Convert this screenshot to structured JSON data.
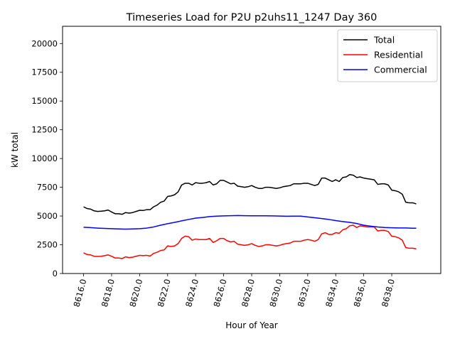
{
  "chart_data": {
    "type": "line",
    "title": "Timeseries Load for P2U p2uhs11_1247  Day 360",
    "xlabel": "Hour of Year",
    "ylabel": "kW total",
    "xlim": [
      8614.5,
      8641.5
    ],
    "ylim": [
      0,
      21500
    ],
    "x_ticks": [
      8616,
      8618,
      8620,
      8622,
      8624,
      8626,
      8628,
      8630,
      8632,
      8634,
      8636,
      8638
    ],
    "x_tick_labels": [
      "8616.0",
      "8618.0",
      "8620.0",
      "8622.0",
      "8624.0",
      "8626.0",
      "8628.0",
      "8630.0",
      "8632.0",
      "8634.0",
      "8636.0",
      "8638.0"
    ],
    "y_ticks": [
      0,
      2500,
      5000,
      7500,
      10000,
      12500,
      15000,
      17500,
      20000
    ],
    "y_tick_labels": [
      "0",
      "2500",
      "5000",
      "7500",
      "10000",
      "12500",
      "15000",
      "17500",
      "20000"
    ],
    "legend_position": "top-right",
    "grid": false,
    "series": [
      {
        "name": "Total",
        "color": "#000000",
        "x": [
          8616.0,
          8616.25,
          8616.5,
          8616.75,
          8617.0,
          8617.25,
          8617.5,
          8617.75,
          8618.0,
          8618.25,
          8618.5,
          8618.75,
          8619.0,
          8619.25,
          8619.5,
          8619.75,
          8620.0,
          8620.25,
          8620.5,
          8620.75,
          8621.0,
          8621.25,
          8621.5,
          8621.75,
          8622.0,
          8622.25,
          8622.5,
          8622.75,
          8623.0,
          8623.25,
          8623.5,
          8623.75,
          8624.0,
          8624.25,
          8624.5,
          8624.75,
          8625.0,
          8625.25,
          8625.5,
          8625.75,
          8626.0,
          8626.25,
          8626.5,
          8626.75,
          8627.0,
          8627.25,
          8627.5,
          8627.75,
          8628.0,
          8628.25,
          8628.5,
          8628.75,
          8629.0,
          8629.25,
          8629.5,
          8629.75,
          8630.0,
          8630.25,
          8630.5,
          8630.75,
          8631.0,
          8631.25,
          8631.5,
          8631.75,
          8632.0,
          8632.25,
          8632.5,
          8632.75,
          8633.0,
          8633.25,
          8633.5,
          8633.75,
          8634.0,
          8634.25,
          8634.5,
          8634.75,
          8635.0,
          8635.25,
          8635.5,
          8635.75,
          8636.0,
          8636.25,
          8636.5,
          8636.75,
          8637.0,
          8637.25,
          8637.5,
          8637.75,
          8638.0,
          8638.25,
          8638.5,
          8638.75,
          8639.0,
          8639.25,
          8639.5,
          8639.75
        ],
        "values": [
          5800,
          5650,
          5600,
          5450,
          5400,
          5420,
          5450,
          5520,
          5350,
          5200,
          5200,
          5150,
          5300,
          5250,
          5300,
          5400,
          5500,
          5480,
          5550,
          5550,
          5800,
          5950,
          6200,
          6300,
          6700,
          6750,
          6850,
          7100,
          7700,
          7850,
          7850,
          7700,
          7900,
          7850,
          7850,
          7900,
          8000,
          7700,
          7800,
          8100,
          8100,
          7950,
          7800,
          7850,
          7600,
          7550,
          7500,
          7550,
          7650,
          7500,
          7400,
          7400,
          7500,
          7500,
          7450,
          7400,
          7450,
          7550,
          7600,
          7650,
          7800,
          7800,
          7800,
          7850,
          7850,
          7750,
          7650,
          7750,
          8300,
          8300,
          8150,
          8000,
          8150,
          8000,
          8350,
          8400,
          8600,
          8550,
          8350,
          8400,
          8300,
          8250,
          8200,
          8150,
          7750,
          7800,
          7800,
          7700,
          7250,
          7200,
          7100,
          6900,
          6200,
          6150,
          6150,
          6050
        ]
      },
      {
        "name": "Residential",
        "color": "#ff0000",
        "x": [
          8616.0,
          8616.25,
          8616.5,
          8616.75,
          8617.0,
          8617.25,
          8617.5,
          8617.75,
          8618.0,
          8618.25,
          8618.5,
          8618.75,
          8619.0,
          8619.25,
          8619.5,
          8619.75,
          8620.0,
          8620.25,
          8620.5,
          8620.75,
          8621.0,
          8621.25,
          8621.5,
          8621.75,
          8622.0,
          8622.25,
          8622.5,
          8622.75,
          8623.0,
          8623.25,
          8623.5,
          8623.75,
          8624.0,
          8624.25,
          8624.5,
          8624.75,
          8625.0,
          8625.25,
          8625.5,
          8625.75,
          8626.0,
          8626.25,
          8626.5,
          8626.75,
          8627.0,
          8627.25,
          8627.5,
          8627.75,
          8628.0,
          8628.25,
          8628.5,
          8628.75,
          8629.0,
          8629.25,
          8629.5,
          8629.75,
          8630.0,
          8630.25,
          8630.5,
          8630.75,
          8631.0,
          8631.25,
          8631.5,
          8631.75,
          8632.0,
          8632.25,
          8632.5,
          8632.75,
          8633.0,
          8633.25,
          8633.5,
          8633.75,
          8634.0,
          8634.25,
          8634.5,
          8634.75,
          8635.0,
          8635.25,
          8635.5,
          8635.75,
          8636.0,
          8636.25,
          8636.5,
          8636.75,
          8637.0,
          8637.25,
          8637.5,
          8637.75,
          8638.0,
          8638.25,
          8638.5,
          8638.75,
          8639.0,
          8639.25,
          8639.5,
          8639.75
        ],
        "values": [
          1800,
          1650,
          1620,
          1500,
          1480,
          1500,
          1550,
          1620,
          1500,
          1350,
          1350,
          1300,
          1450,
          1380,
          1420,
          1500,
          1580,
          1550,
          1580,
          1520,
          1750,
          1850,
          2000,
          2050,
          2400,
          2350,
          2400,
          2600,
          3050,
          3250,
          3200,
          2900,
          3000,
          2950,
          2950,
          2950,
          3050,
          2700,
          2850,
          3050,
          3050,
          2850,
          2750,
          2800,
          2550,
          2500,
          2450,
          2500,
          2600,
          2450,
          2350,
          2400,
          2500,
          2500,
          2450,
          2400,
          2450,
          2550,
          2600,
          2650,
          2800,
          2800,
          2800,
          2900,
          2950,
          2900,
          2800,
          2950,
          3450,
          3550,
          3400,
          3400,
          3550,
          3500,
          3800,
          3900,
          4150,
          4200,
          4000,
          4150,
          4100,
          4050,
          4050,
          4050,
          3700,
          3750,
          3750,
          3650,
          3250,
          3200,
          3100,
          2900,
          2250,
          2200,
          2200,
          2150
        ]
      },
      {
        "name": "Commercial",
        "color": "#0000ff",
        "x": [
          8616.0,
          8616.5,
          8617.0,
          8617.5,
          8618.0,
          8618.5,
          8619.0,
          8619.5,
          8620.0,
          8620.5,
          8621.0,
          8621.5,
          8622.0,
          8622.5,
          8623.0,
          8623.5,
          8624.0,
          8624.5,
          8625.0,
          8625.5,
          8626.0,
          8626.5,
          8627.0,
          8627.5,
          8628.0,
          8628.5,
          8629.0,
          8629.5,
          8630.0,
          8630.5,
          8631.0,
          8631.5,
          8632.0,
          8632.5,
          8633.0,
          8633.5,
          8634.0,
          8634.5,
          8635.0,
          8635.5,
          8636.0,
          8636.5,
          8637.0,
          8637.5,
          8638.0,
          8638.5,
          8639.0,
          8639.5,
          8639.75
        ],
        "values": [
          4020,
          3990,
          3950,
          3920,
          3900,
          3880,
          3860,
          3880,
          3900,
          3950,
          4050,
          4200,
          4330,
          4450,
          4580,
          4700,
          4820,
          4870,
          4950,
          4990,
          5010,
          5030,
          5040,
          5030,
          5020,
          5020,
          5020,
          5010,
          5000,
          4980,
          4990,
          4990,
          4920,
          4850,
          4780,
          4700,
          4600,
          4520,
          4450,
          4350,
          4200,
          4120,
          4050,
          4000,
          3980,
          3960,
          3960,
          3940,
          3940
        ]
      }
    ]
  }
}
